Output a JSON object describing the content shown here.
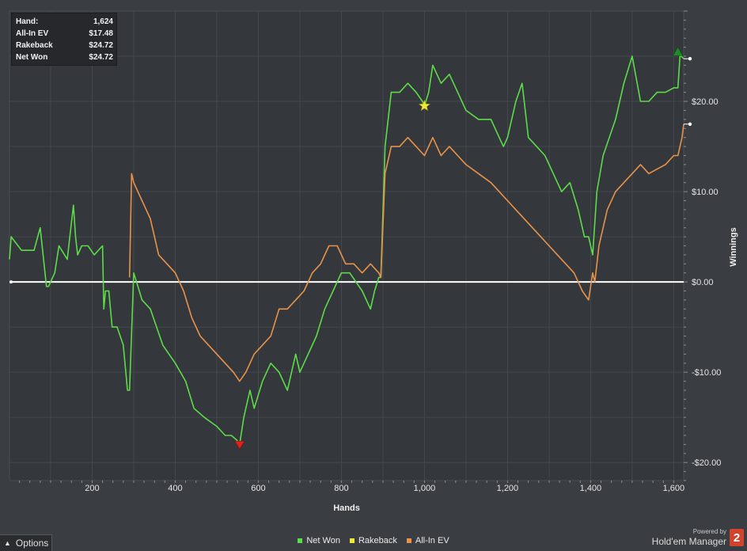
{
  "info_box": {
    "rows": [
      {
        "label": "Hand:",
        "value": "1,624"
      },
      {
        "label": "All-In EV",
        "value": "$17.48"
      },
      {
        "label": "Rakeback",
        "value": "$24.72"
      },
      {
        "label": "Net Won",
        "value": "$24.72"
      }
    ]
  },
  "legend": {
    "items": [
      {
        "label": "Net Won",
        "color": "#5ddc4a"
      },
      {
        "label": "Rakeback",
        "color": "#f2e83a"
      },
      {
        "label": "All-In EV",
        "color": "#e8934a"
      }
    ]
  },
  "options_label": "Options",
  "options_icon": "chevron-up-icon",
  "brand": {
    "powered": "Powered by",
    "name": "Hold'em Manager",
    "badge": "2"
  },
  "chart_data": {
    "type": "line",
    "xlabel": "Hands",
    "ylabel": "Winnings",
    "xlim": [
      1,
      1624
    ],
    "ylim": [
      -22,
      30
    ],
    "x_ticks": [
      200,
      400,
      600,
      800,
      1000,
      1200,
      1400,
      1600
    ],
    "x_tick_labels": [
      "200",
      "400",
      "600",
      "800",
      "1,000",
      "1,200",
      "1,400",
      "1,600"
    ],
    "y_ticks": [
      20,
      10,
      0,
      -10,
      -20
    ],
    "y_tick_labels": [
      "$20.00",
      "$10.00",
      "$0.00",
      "-$10.00",
      "-$20.00"
    ],
    "grid": true,
    "zero_line": true,
    "series": [
      {
        "name": "Net Won",
        "color": "#5ddc4a",
        "x": [
          1,
          5,
          30,
          60,
          75,
          90,
          95,
          110,
          120,
          140,
          155,
          160,
          165,
          175,
          190,
          205,
          225,
          228,
          232,
          240,
          248,
          260,
          275,
          285,
          290,
          300,
          320,
          340,
          370,
          400,
          425,
          445,
          470,
          500,
          520,
          535,
          548,
          555,
          565,
          580,
          590,
          610,
          630,
          650,
          670,
          690,
          700,
          720,
          740,
          760,
          780,
          800,
          820,
          850,
          870,
          880,
          890,
          895,
          905,
          920,
          940,
          960,
          980,
          995,
          1000,
          1010,
          1020,
          1040,
          1060,
          1080,
          1100,
          1130,
          1160,
          1180,
          1190,
          1200,
          1220,
          1235,
          1250,
          1270,
          1290,
          1310,
          1330,
          1350,
          1370,
          1385,
          1395,
          1405,
          1415,
          1430,
          1445,
          1460,
          1480,
          1500,
          1520,
          1540,
          1560,
          1580,
          1600,
          1610,
          1615,
          1618,
          1624
        ],
        "values": [
          2.5,
          5,
          3.5,
          3.5,
          6,
          -0.5,
          -0.5,
          1,
          4,
          2.5,
          8.5,
          5,
          3,
          4,
          4,
          3,
          4,
          -3,
          -1,
          -1,
          -5,
          -5,
          -7,
          -12,
          -12,
          1,
          -2,
          -3,
          -7,
          -9,
          -11,
          -14,
          -15,
          -16,
          -17,
          -17,
          -17.5,
          -18,
          -15,
          -12,
          -14,
          -11,
          -9,
          -10,
          -12,
          -8,
          -10,
          -8,
          -6,
          -3,
          -1,
          1,
          1,
          -1,
          -3,
          -1,
          0.5,
          0.5,
          15,
          21,
          21,
          22,
          21,
          20,
          19.5,
          21,
          24,
          22,
          23,
          21,
          19,
          18,
          18,
          16,
          15,
          16,
          20,
          22,
          16,
          15,
          14,
          12,
          10,
          11,
          8,
          5,
          5,
          3,
          10,
          14,
          16,
          18,
          22,
          25,
          20,
          20,
          21,
          21,
          21.5,
          21.5,
          25,
          25,
          24.72
        ]
      },
      {
        "name": "All-In EV",
        "color": "#e8934a",
        "x": [
          290,
          295,
          300,
          320,
          340,
          360,
          380,
          400,
          420,
          440,
          460,
          480,
          500,
          520,
          540,
          555,
          570,
          590,
          610,
          630,
          650,
          670,
          690,
          710,
          730,
          750,
          770,
          790,
          810,
          830,
          850,
          870,
          890,
          895,
          905,
          920,
          940,
          960,
          980,
          1000,
          1020,
          1040,
          1060,
          1080,
          1100,
          1130,
          1160,
          1180,
          1200,
          1220,
          1240,
          1260,
          1280,
          1300,
          1320,
          1340,
          1360,
          1380,
          1395,
          1405,
          1410,
          1420,
          1440,
          1460,
          1480,
          1500,
          1520,
          1540,
          1560,
          1580,
          1600,
          1610,
          1615,
          1620,
          1624
        ],
        "values": [
          0.5,
          12,
          11,
          9,
          7,
          3,
          2,
          1,
          -1,
          -4,
          -6,
          -7,
          -8,
          -9,
          -10,
          -11,
          -10,
          -8,
          -7,
          -6,
          -3,
          -3,
          -2,
          -1,
          1,
          2,
          4,
          4,
          2,
          2,
          1,
          2,
          1,
          0.5,
          12,
          15,
          15,
          16,
          15,
          14,
          16,
          14,
          15,
          14,
          13,
          12,
          11,
          10,
          9,
          8,
          7,
          6,
          5,
          4,
          3,
          2,
          1,
          -1,
          -2,
          1,
          0,
          4,
          8,
          10,
          11,
          12,
          13,
          12,
          12.5,
          13,
          14,
          14,
          15,
          16,
          17.48
        ]
      },
      {
        "name": "Rakeback",
        "color": "#f2e83a",
        "x": [],
        "values": []
      }
    ],
    "markers": [
      {
        "type": "star",
        "x": 1000,
        "y": 19.5,
        "color": "#f2e83a"
      },
      {
        "type": "triangle-down",
        "x": 555,
        "y": -18,
        "color": "#e02020"
      },
      {
        "type": "triangle-up",
        "x": 1610,
        "y": 25.5,
        "color": "#1f8a2a"
      }
    ]
  }
}
